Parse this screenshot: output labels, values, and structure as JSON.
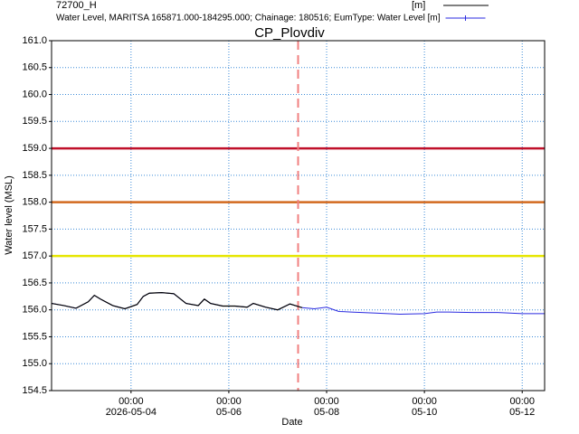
{
  "chart_data": {
    "type": "line",
    "title": "CP_Plovdiv",
    "xlabel": "Date",
    "ylabel": "Water level (MSL)",
    "legend_header": "72700_H",
    "x": [
      "2026-05-02T09:00",
      "2026-05-02T15:00",
      "2026-05-02T21:00",
      "2026-05-03T03:00",
      "2026-05-03T06:00",
      "2026-05-03T09:00",
      "2026-05-03T15:00",
      "2026-05-03T21:00",
      "2026-05-04T03:00",
      "2026-05-04T06:00",
      "2026-05-04T09:00",
      "2026-05-04T15:00",
      "2026-05-04T21:00",
      "2026-05-05T03:00",
      "2026-05-05T09:00",
      "2026-05-05T12:00",
      "2026-05-05T15:00",
      "2026-05-05T21:00",
      "2026-05-06T03:00",
      "2026-05-06T09:00",
      "2026-05-06T12:00",
      "2026-05-06T18:00",
      "2026-05-07T00:00",
      "2026-05-07T06:00",
      "2026-05-07T12:00",
      "2026-05-07T18:00",
      "2026-05-08T00:00",
      "2026-05-08T06:00",
      "2026-05-08T12:00",
      "2026-05-09T00:00",
      "2026-05-09T12:00",
      "2026-05-10T00:00",
      "2026-05-10T06:00",
      "2026-05-10T12:00",
      "2026-05-11T00:00",
      "2026-05-11T12:00",
      "2026-05-12T00:00",
      "2026-05-12T11:00"
    ],
    "series": [
      {
        "name": "[m]",
        "color": "#000000",
        "values": [
          156.12,
          156.08,
          156.03,
          156.15,
          156.27,
          156.2,
          156.08,
          156.02,
          156.1,
          156.25,
          156.31,
          156.32,
          156.3,
          156.12,
          156.08,
          156.2,
          156.12,
          156.07,
          156.07,
          156.05,
          156.12,
          156.05,
          156.0,
          156.11,
          156.04,
          null,
          null,
          null,
          null,
          null,
          null,
          null,
          null,
          null,
          null,
          null,
          null,
          null
        ]
      },
      {
        "name": "Water Level, MARITSA 165871.000-184295.000; Chainage: 180516; EumType: Water Level [m]",
        "color": "#2a2ae0",
        "values": [
          156.12,
          156.08,
          156.03,
          156.15,
          156.27,
          156.2,
          156.08,
          156.02,
          156.1,
          156.25,
          156.31,
          156.32,
          156.3,
          156.12,
          156.08,
          156.2,
          156.12,
          156.07,
          156.07,
          156.05,
          156.12,
          156.05,
          156.0,
          156.11,
          156.04,
          156.02,
          156.05,
          155.97,
          155.96,
          155.94,
          155.92,
          155.93,
          155.96,
          155.96,
          155.95,
          155.95,
          155.93,
          155.93
        ]
      }
    ],
    "hlines": [
      {
        "value": 159.0,
        "color": "#c0102a"
      },
      {
        "value": 158.0,
        "color": "#d2691e"
      },
      {
        "value": 157.0,
        "color": "#e6e600"
      }
    ],
    "vline": {
      "x": "2026-05-07T10:00",
      "color": "#f08080"
    },
    "xlim": [
      "2026-05-02T09:00",
      "2026-05-12T11:00"
    ],
    "xticks": [
      {
        "value": "2026-05-04T00:00",
        "label": [
          "00:00",
          "2026-05-04"
        ]
      },
      {
        "value": "2026-05-06T00:00",
        "label": [
          "00:00",
          "05-06"
        ]
      },
      {
        "value": "2026-05-08T00:00",
        "label": [
          "00:00",
          "05-08"
        ]
      },
      {
        "value": "2026-05-10T00:00",
        "label": [
          "00:00",
          "05-10"
        ]
      },
      {
        "value": "2026-05-12T00:00",
        "label": [
          "00:00",
          "05-12"
        ]
      }
    ],
    "ylim": [
      154.5,
      161.0
    ],
    "yticks": [
      154.5,
      {
        "value": 155,
        "label": "155.0"
      },
      155.5,
      {
        "value": 156,
        "label": "156.0"
      },
      156.5,
      {
        "value": 157,
        "label": "157.0"
      },
      157.5,
      {
        "value": 158,
        "label": "158.0"
      },
      158.5,
      {
        "value": 159,
        "label": "159.0"
      },
      159.5,
      {
        "value": 160,
        "label": "160.0"
      },
      160.5,
      {
        "value": 161,
        "label": "161.0"
      }
    ],
    "grid": true
  }
}
